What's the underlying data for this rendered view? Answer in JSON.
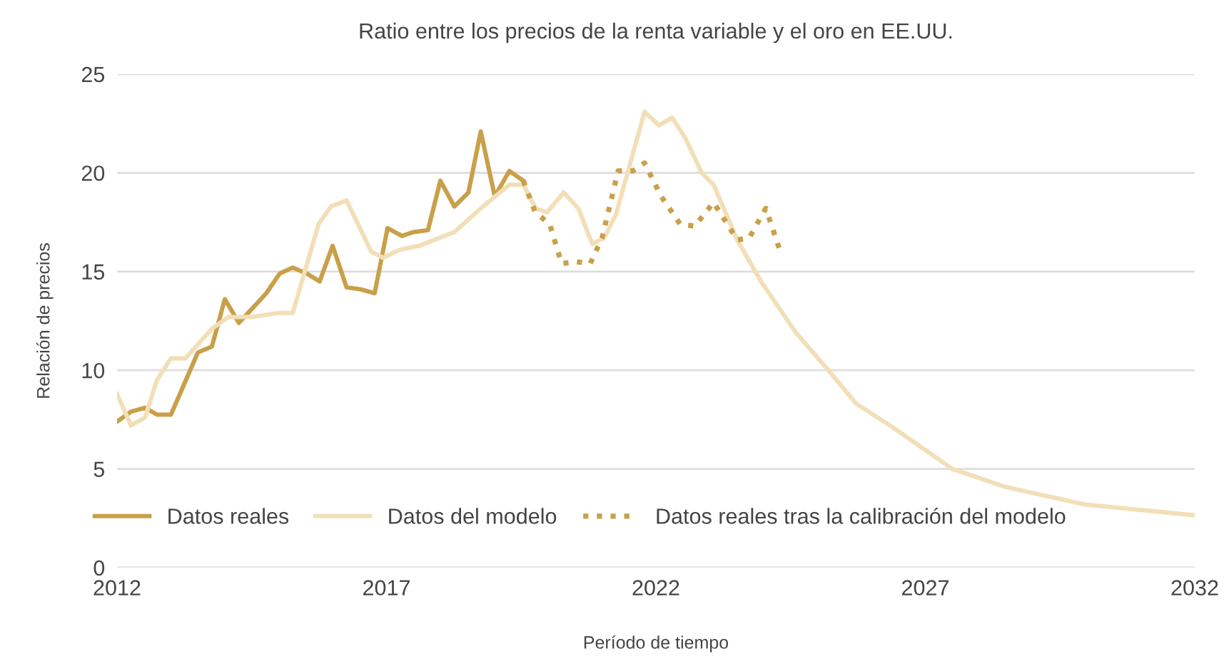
{
  "chart_data": {
    "type": "line",
    "title": "Ratio entre los precios de la renta variable y el oro en EE.UU.",
    "xlabel": "Período de tiempo",
    "ylabel": "Relación de precios",
    "xlim": [
      2012,
      2032
    ],
    "xticks": [
      2012,
      2017,
      2022,
      2027,
      2032
    ],
    "ylim": [
      0,
      25
    ],
    "yticks": [
      0,
      5,
      10,
      15,
      20,
      25
    ],
    "grid": "y",
    "legend": "bottom",
    "series": [
      {
        "name": "Datos reales",
        "color": "#c9a04a",
        "line_style": "solid",
        "x": [
          2012.0,
          2012.26,
          2012.52,
          2012.74,
          2013.0,
          2013.5,
          2013.76,
          2014.0,
          2014.26,
          2014.5,
          2014.77,
          2015.02,
          2015.26,
          2015.52,
          2015.76,
          2016.0,
          2016.26,
          2016.52,
          2016.78,
          2017.02,
          2017.29,
          2017.5,
          2017.77,
          2018.0,
          2018.26,
          2018.52,
          2018.75,
          2019.01,
          2019.28,
          2019.54
        ],
        "values": [
          7.4,
          7.9,
          8.1,
          7.75,
          7.75,
          10.9,
          11.2,
          13.6,
          12.4,
          13.1,
          13.9,
          14.9,
          15.2,
          14.9,
          14.5,
          16.3,
          14.2,
          14.1,
          13.9,
          17.2,
          16.8,
          17.0,
          17.1,
          19.6,
          18.3,
          19.0,
          22.1,
          18.8,
          20.1,
          19.6
        ]
      },
      {
        "name": "Datos del modelo",
        "color": "#f2dfb8",
        "line_style": "solid",
        "x": [
          2012.0,
          2012.26,
          2012.52,
          2012.74,
          2013.0,
          2013.27,
          2013.76,
          2014.07,
          2014.5,
          2014.99,
          2015.26,
          2015.74,
          2015.97,
          2016.26,
          2016.72,
          2016.94,
          2017.25,
          2017.6,
          2018.26,
          2018.75,
          2019.28,
          2019.54,
          2019.77,
          2019.98,
          2020.29,
          2020.56,
          2020.82,
          2021.04,
          2021.26,
          2021.79,
          2022.06,
          2022.3,
          2022.54,
          2022.85,
          2023.07,
          2023.51,
          2023.95,
          2024.6,
          2025.2,
          2025.72,
          2026.4,
          2027.5,
          2028.47,
          2029.96,
          2032.0
        ],
        "values": [
          8.8,
          7.2,
          7.6,
          9.5,
          10.6,
          10.6,
          12.1,
          12.7,
          12.7,
          12.9,
          12.9,
          17.4,
          18.3,
          18.6,
          16.0,
          15.7,
          16.1,
          16.3,
          17.0,
          18.2,
          19.4,
          19.4,
          18.2,
          18.0,
          19.0,
          18.2,
          16.4,
          16.7,
          17.9,
          23.1,
          22.4,
          22.8,
          21.8,
          20.0,
          19.4,
          16.6,
          14.5,
          11.9,
          10.0,
          8.3,
          7.1,
          5.0,
          4.1,
          3.2,
          2.65
        ]
      },
      {
        "name": "Datos reales tras la calibración del modelo",
        "color": "#c9a04a",
        "line_style": "dotted",
        "x": [
          2019.54,
          2019.76,
          2020.03,
          2020.25,
          2020.51,
          2020.78,
          2021.0,
          2021.3,
          2021.57,
          2021.79,
          2022.1,
          2022.45,
          2022.72,
          2023.07,
          2023.51,
          2023.73,
          2024.04,
          2024.31
        ],
        "values": [
          19.6,
          18.0,
          17.4,
          15.4,
          15.5,
          15.4,
          16.7,
          20.1,
          20.1,
          20.5,
          18.8,
          17.4,
          17.3,
          18.5,
          16.6,
          16.7,
          18.2,
          16.0
        ]
      }
    ]
  }
}
